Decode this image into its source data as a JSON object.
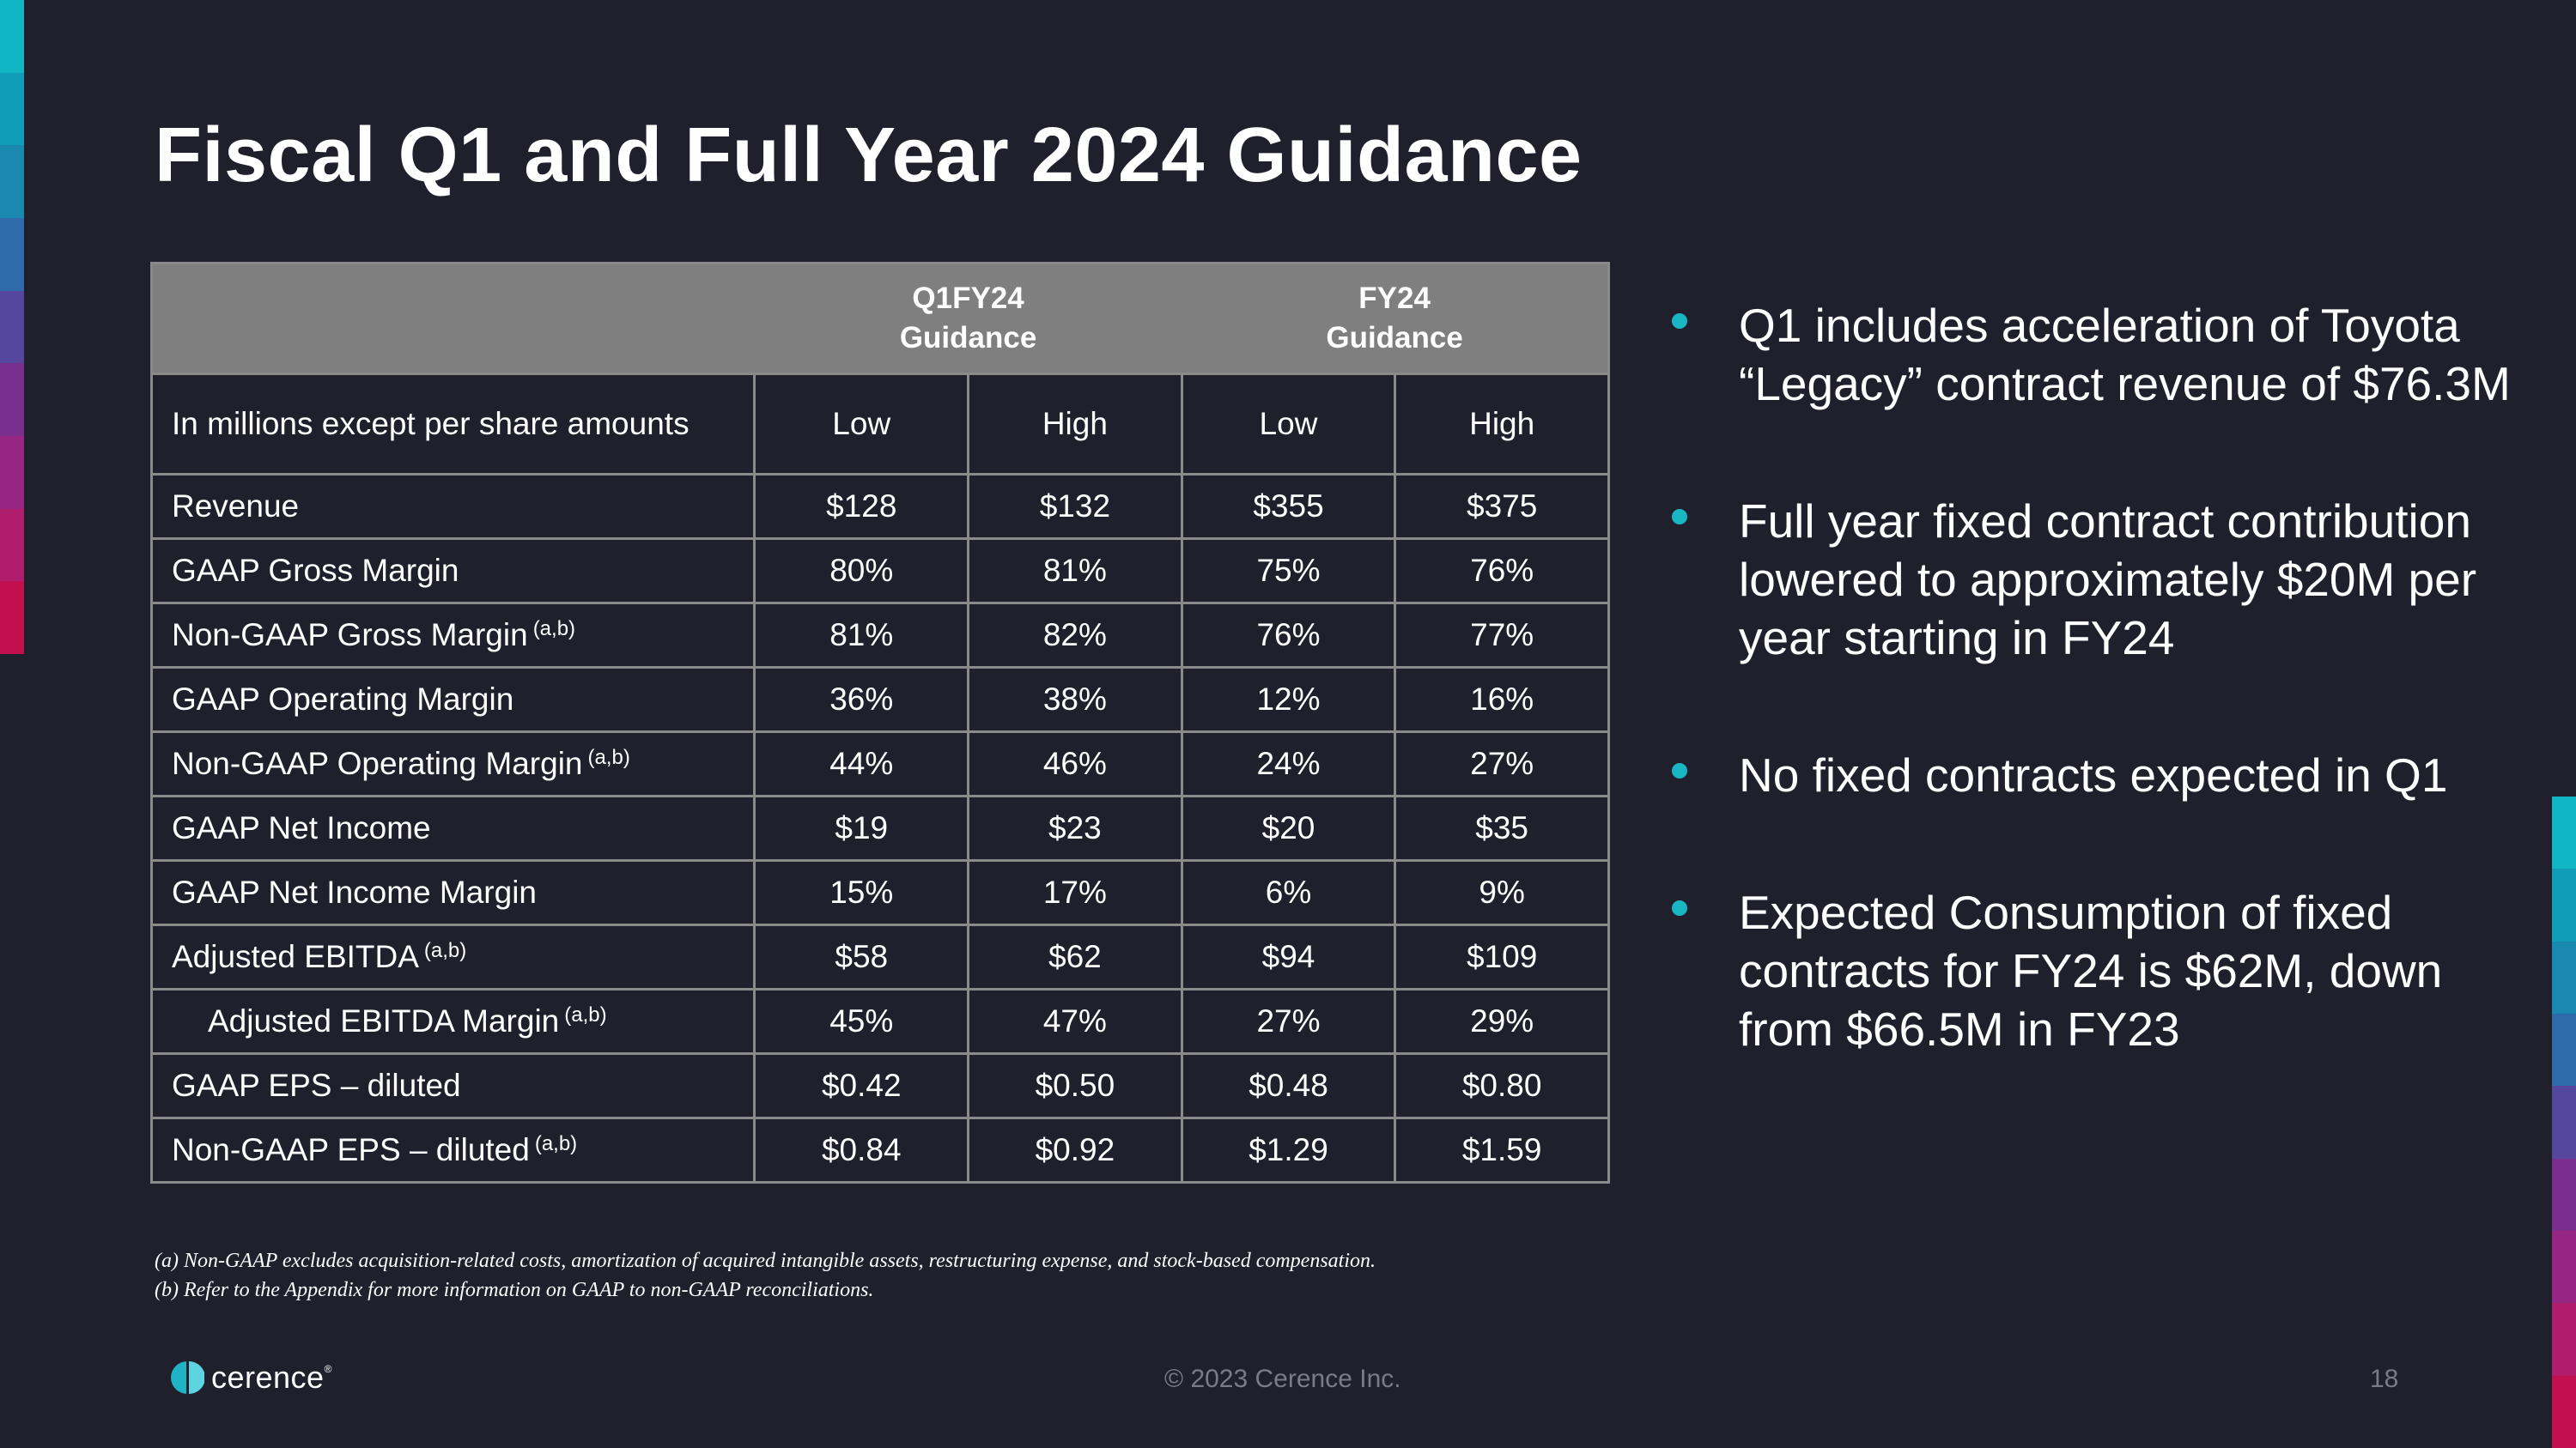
{
  "slide": {
    "title": "Fiscal Q1 and Full Year 2024 Guidance",
    "accent_colors": [
      "#10b6c4",
      "#0f9db8",
      "#1a88b0",
      "#2f6bab",
      "#55479e",
      "#7a2f8f",
      "#962683",
      "#b01d6d",
      "#c2104f"
    ]
  },
  "table": {
    "group_headers": [
      {
        "line1": "Q1FY24",
        "line2": "Guidance"
      },
      {
        "line1": "FY24",
        "line2": "Guidance"
      }
    ],
    "column_headers": [
      "In millions except per share amounts",
      "Low",
      "High",
      "Low",
      "High"
    ],
    "rows": [
      {
        "label": "Revenue",
        "note": "",
        "values": [
          "$128",
          "$132",
          "$355",
          "$375"
        ]
      },
      {
        "label": "GAAP Gross Margin",
        "note": "",
        "values": [
          "80%",
          "81%",
          "75%",
          "76%"
        ]
      },
      {
        "label": "Non-GAAP Gross Margin",
        "note": "(a,b)",
        "values": [
          "81%",
          "82%",
          "76%",
          "77%"
        ]
      },
      {
        "label": "GAAP Operating Margin",
        "note": "",
        "values": [
          "36%",
          "38%",
          "12%",
          "16%"
        ]
      },
      {
        "label": "Non-GAAP Operating Margin",
        "note": "(a,b)",
        "values": [
          "44%",
          "46%",
          "24%",
          "27%"
        ]
      },
      {
        "label": "GAAP Net Income",
        "note": "",
        "values": [
          "$19",
          "$23",
          "$20",
          "$35"
        ]
      },
      {
        "label": "GAAP Net Income Margin",
        "note": "",
        "values": [
          "15%",
          "17%",
          "6%",
          "9%"
        ]
      },
      {
        "label": "Adjusted EBITDA",
        "note": "(a,b)",
        "values": [
          "$58",
          "$62",
          "$94",
          "$109"
        ]
      },
      {
        "label": "Adjusted EBITDA Margin",
        "note": "(a,b)",
        "values": [
          "45%",
          "47%",
          "27%",
          "29%"
        ]
      },
      {
        "label": "GAAP EPS – diluted",
        "note": "",
        "values": [
          "$0.42",
          "$0.50",
          "$0.48",
          "$0.80"
        ]
      },
      {
        "label": "Non-GAAP EPS – diluted",
        "note": "(a,b)",
        "values": [
          "$0.84",
          "$0.92",
          "$1.29",
          "$1.59"
        ]
      }
    ]
  },
  "bullets": [
    "Q1 includes acceleration of Toyota “Legacy” contract revenue of $76.3M",
    "Full year fixed contract contribution lowered to approximately $20M per year starting in FY24",
    "No fixed contracts expected in Q1",
    "Expected Consumption of fixed contracts for FY24 is $62M, down from $66.5M in FY23"
  ],
  "footnotes": [
    "(a) Non-GAAP excludes acquisition-related costs, amortization of acquired intangible assets, restructuring expense, and stock-based compensation.",
    "(b) Refer to the Appendix for more information on GAAP to non-GAAP reconciliations."
  ],
  "footer": {
    "logo_text": "cerence",
    "logo_tm": "®",
    "copyright": "© 2023 Cerence Inc.",
    "page_number": "18"
  }
}
